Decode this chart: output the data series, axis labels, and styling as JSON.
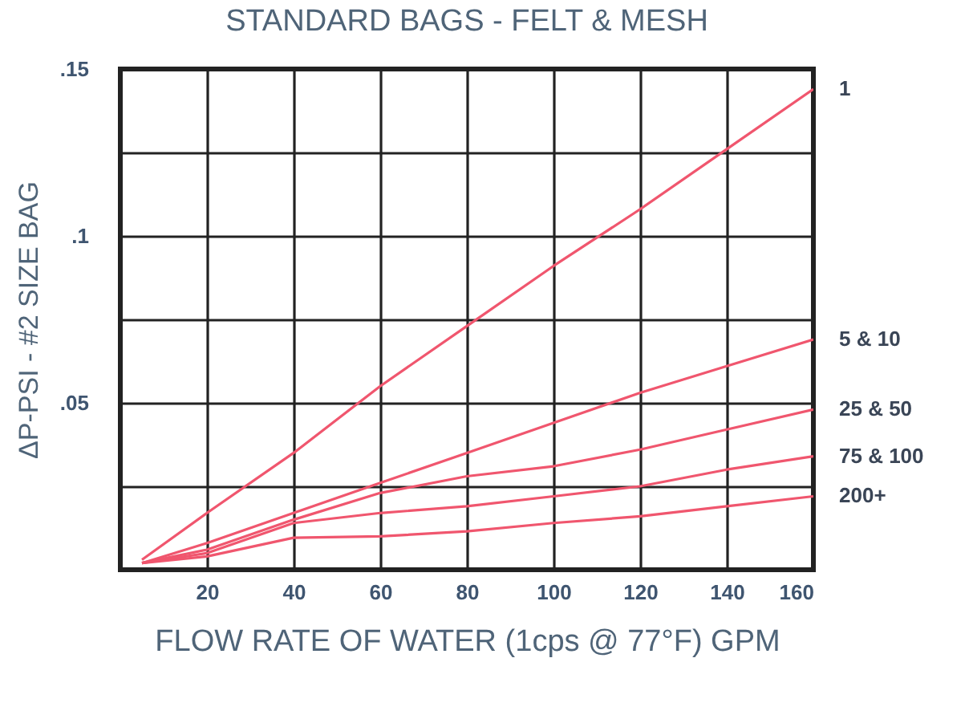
{
  "chart_data": {
    "type": "line",
    "title": "STANDARD BAGS - FELT & MESH",
    "xlabel": "FLOW RATE OF WATER (1cps @ 77°F) GPM",
    "ylabel": "ΔP-PSI - #2 SIZE BAG",
    "x": [
      5,
      20,
      40,
      60,
      80,
      100,
      120,
      140,
      160
    ],
    "series": [
      {
        "name": "1",
        "color": "#f0566e",
        "values": [
          0.003,
          0.017,
          0.035,
          0.055,
          0.073,
          0.091,
          0.108,
          0.126,
          0.144
        ]
      },
      {
        "name": "5 & 10",
        "color": "#f0566e",
        "values": [
          0.002,
          0.008,
          0.017,
          0.026,
          0.035,
          0.044,
          0.053,
          0.061,
          0.069
        ]
      },
      {
        "name": "25 & 50",
        "color": "#f0566e",
        "values": [
          0.002,
          0.006,
          0.015,
          0.023,
          0.028,
          0.031,
          0.036,
          0.042,
          0.048
        ]
      },
      {
        "name": "75 & 100",
        "color": "#f0566e",
        "values": [
          0.002,
          0.005,
          0.014,
          0.017,
          0.019,
          0.022,
          0.025,
          0.03,
          0.034
        ]
      },
      {
        "name": "200+",
        "color": "#f0566e",
        "values": [
          0.002,
          0.004,
          0.0096,
          0.01,
          0.0115,
          0.014,
          0.016,
          0.019,
          0.022
        ]
      }
    ],
    "xlim": [
      0,
      160
    ],
    "xticks": [
      20,
      40,
      60,
      80,
      100,
      120,
      140,
      160
    ],
    "ylim": [
      0,
      0.15
    ],
    "yticks": [
      {
        "value": 0.025,
        "label": null
      },
      {
        "value": 0.05,
        "label": ".05"
      },
      {
        "value": 0.075,
        "label": null
      },
      {
        "value": 0.1,
        "label": ".1"
      },
      {
        "value": 0.125,
        "label": null
      },
      {
        "value": 0.15,
        "label": ".15"
      }
    ],
    "grid": true,
    "legend": false,
    "marker": "none",
    "line_style": "solid"
  }
}
